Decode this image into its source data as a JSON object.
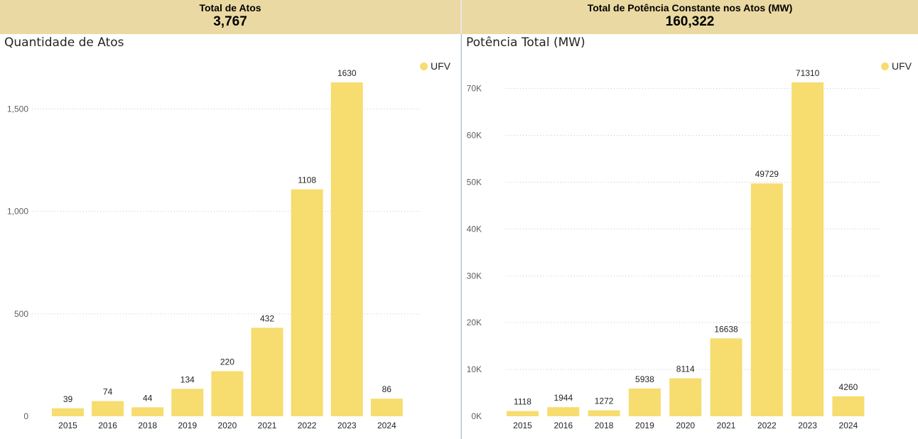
{
  "kpis": [
    {
      "label": "Total de Atos",
      "value": "3,767"
    },
    {
      "label": "Total de Potência Constante nos Atos (MW)",
      "value": "160,322"
    }
  ],
  "accent_color": "#f7dc6f",
  "chart_data": [
    {
      "type": "bar",
      "title": "Quantidade de Atos",
      "legend": "UFV",
      "legend_position": "top-right",
      "grid": true,
      "categories": [
        "2015",
        "2016",
        "2018",
        "2019",
        "2020",
        "2021",
        "2022",
        "2023",
        "2024"
      ],
      "values": [
        39,
        74,
        44,
        134,
        220,
        432,
        1108,
        1630,
        86
      ],
      "labels": [
        "39",
        "74",
        "44",
        "134",
        "220",
        "432",
        "1108",
        "1630",
        "86"
      ],
      "yticks": [
        0,
        500,
        1000,
        1500
      ],
      "ytick_labels": [
        "0",
        "500",
        "1,000",
        "1,500"
      ],
      "ylim": [
        0,
        1630
      ],
      "xlabel": "",
      "ylabel": ""
    },
    {
      "type": "bar",
      "title": "Potência Total (MW)",
      "legend": "UFV",
      "legend_position": "top-right",
      "grid": true,
      "categories": [
        "2015",
        "2016",
        "2018",
        "2019",
        "2020",
        "2021",
        "2022",
        "2023",
        "2024"
      ],
      "values": [
        1118,
        1944,
        1272,
        5938,
        8114,
        16638,
        49729,
        71310,
        4260
      ],
      "labels": [
        "1118",
        "1944",
        "1272",
        "5938",
        "8114",
        "16638",
        "49729",
        "71310",
        "4260"
      ],
      "yticks": [
        0,
        10000,
        20000,
        30000,
        40000,
        50000,
        60000,
        70000
      ],
      "ytick_labels": [
        "0K",
        "10K",
        "20K",
        "30K",
        "40K",
        "50K",
        "60K",
        "70K"
      ],
      "ylim": [
        0,
        71310
      ],
      "xlabel": "",
      "ylabel": ""
    }
  ]
}
